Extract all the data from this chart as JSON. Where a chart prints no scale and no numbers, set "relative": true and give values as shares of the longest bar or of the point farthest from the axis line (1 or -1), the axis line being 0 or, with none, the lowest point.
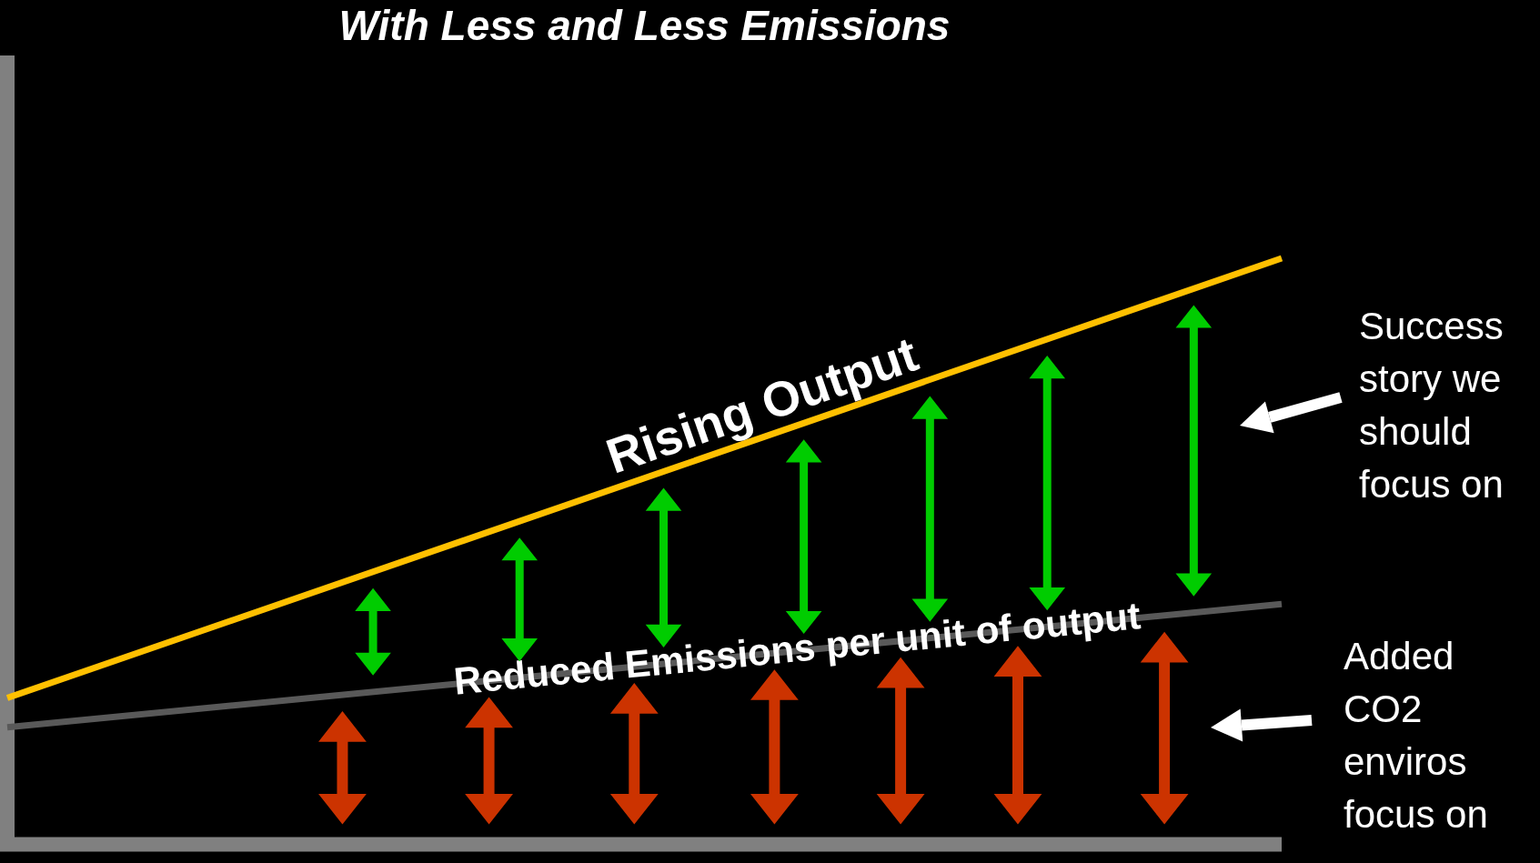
{
  "chart_data": {
    "type": "line",
    "title": "With Less and Less Emissions",
    "categories": [
      null,
      null
    ],
    "relative": true,
    "series": [
      {
        "name": "Rising Output",
        "color": "#ffc000",
        "values": [
          0.25,
          1
        ]
      },
      {
        "name": "Reduced Emissions per unit of output",
        "color": "#595959",
        "values": [
          0.2,
          0.41
        ]
      }
    ],
    "annotations": [
      "Success story we should focus on",
      "Added CO2 enviros focus on"
    ],
    "ref_lines": [
      {
        "axis": "y",
        "value": 0,
        "color": "#808080"
      }
    ],
    "legend": false,
    "grid": false,
    "marker": "none",
    "line_style": "solid"
  }
}
